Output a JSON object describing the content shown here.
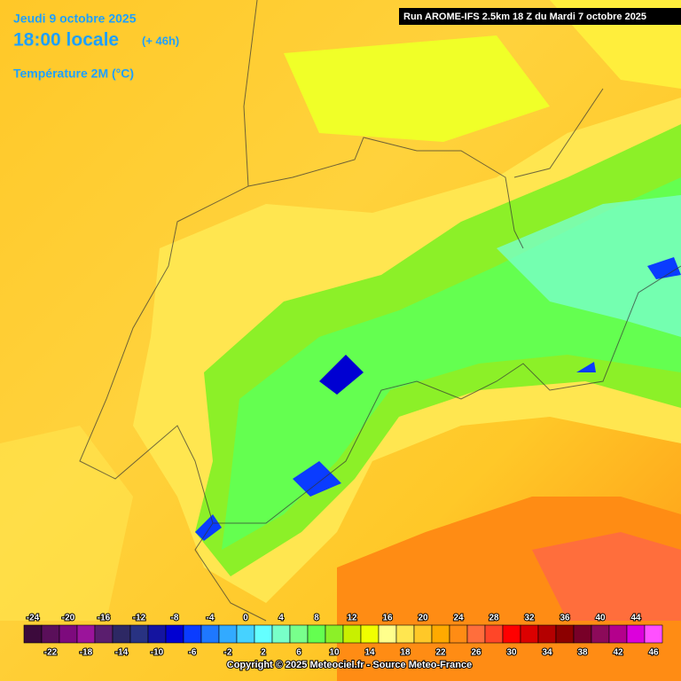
{
  "header": {
    "date": "Jeudi 9 octobre 2025",
    "time": "18:00 locale",
    "lead": "(+ 46h)",
    "parameter": "Température 2M (°C)",
    "run": "Run AROME-IFS 2.5km 18 Z du Mardi 7 octobre 2025"
  },
  "legend": {
    "ticks": [
      -24,
      -22,
      -20,
      -18,
      -16,
      -14,
      -12,
      -10,
      -8,
      -6,
      -4,
      -2,
      0,
      2,
      4,
      6,
      8,
      10,
      12,
      14,
      16,
      18,
      20,
      22,
      24,
      26,
      28,
      30,
      32,
      34,
      36,
      38,
      40,
      42,
      44,
      46
    ],
    "colors": [
      "#3c0a3c",
      "#5a0f5a",
      "#7d0a7d",
      "#9b149b",
      "#5a1e6e",
      "#2d2864",
      "#283282",
      "#1414a0",
      "#0000d2",
      "#0a3cff",
      "#1e78ff",
      "#32aaff",
      "#46d2ff",
      "#64ffff",
      "#78ffc8",
      "#78ff8c",
      "#64ff50",
      "#8cf028",
      "#c8f000",
      "#f0ff00",
      "#ffff8c",
      "#ffe650",
      "#ffc828",
      "#ffaa00",
      "#ff8c14",
      "#ff6e3c",
      "#ff4628",
      "#ff0000",
      "#dc0000",
      "#b40000",
      "#8c0000",
      "#780028",
      "#8c0a5a",
      "#b4008c",
      "#dc00dc",
      "#ff50ff"
    ]
  },
  "footer": "Copyright © 2025 Meteociel.fr - Source Meteo-France"
}
